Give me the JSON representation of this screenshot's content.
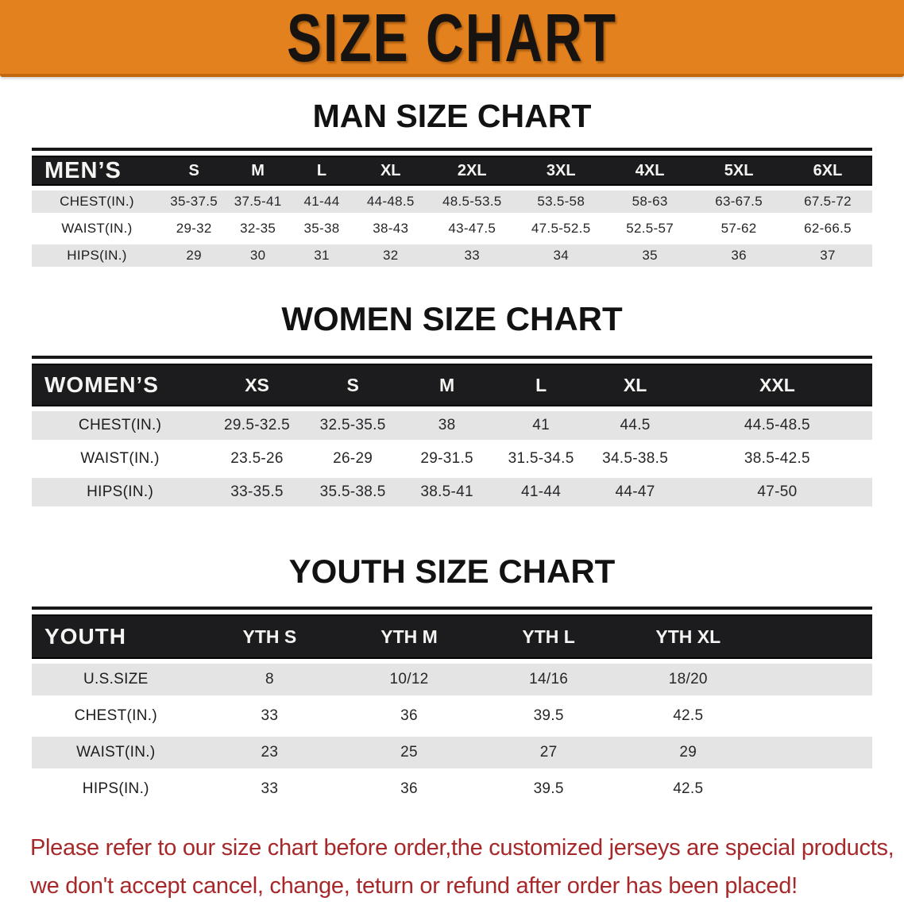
{
  "banner": {
    "title": "SIZE CHART",
    "bg_color": "#e2811e",
    "text_color": "#161311"
  },
  "chart_data": [
    {
      "type": "table",
      "title": "MAN SIZE CHART",
      "corner_label": "MEN’S",
      "columns": [
        "S",
        "M",
        "L",
        "XL",
        "2XL",
        "3XL",
        "4XL",
        "5XL",
        "6XL"
      ],
      "rows": [
        {
          "label": "CHEST(IN.)",
          "values": [
            "35-37.5",
            "37.5-41",
            "41-44",
            "44-48.5",
            "48.5-53.5",
            "53.5-58",
            "58-63",
            "63-67.5",
            "67.5-72"
          ]
        },
        {
          "label": "WAIST(IN.)",
          "values": [
            "29-32",
            "32-35",
            "35-38",
            "38-43",
            "43-47.5",
            "47.5-52.5",
            "52.5-57",
            "57-62",
            "62-66.5"
          ]
        },
        {
          "label": "HIPS(IN.)",
          "values": [
            "29",
            "30",
            "31",
            "32",
            "33",
            "34",
            "35",
            "36",
            "37"
          ]
        }
      ],
      "header_bg": "#1c1c1e",
      "stripe_color": "#e4e4e4"
    },
    {
      "type": "table",
      "title": "WOMEN SIZE CHART",
      "corner_label": "WOMEN’S",
      "columns": [
        "XS",
        "S",
        "M",
        "L",
        "XL",
        "XXL"
      ],
      "rows": [
        {
          "label": "CHEST(IN.)",
          "values": [
            "29.5-32.5",
            "32.5-35.5",
            "38",
            "41",
            "44.5",
            "44.5-48.5"
          ]
        },
        {
          "label": "WAIST(IN.)",
          "values": [
            "23.5-26",
            "26-29",
            "29-31.5",
            "31.5-34.5",
            "34.5-38.5",
            "38.5-42.5"
          ]
        },
        {
          "label": "HIPS(IN.)",
          "values": [
            "33-35.5",
            "35.5-38.5",
            "38.5-41",
            "41-44",
            "44-47",
            "47-50"
          ]
        }
      ],
      "header_bg": "#1c1c1e",
      "stripe_color": "#e4e4e4"
    },
    {
      "type": "table",
      "title": "YOUTH SIZE CHART",
      "corner_label": "YOUTH",
      "columns": [
        "YTH S",
        "YTH M",
        "YTH L",
        "YTH XL"
      ],
      "rows": [
        {
          "label": "U.S.SIZE",
          "values": [
            "8",
            "10/12",
            "14/16",
            "18/20"
          ]
        },
        {
          "label": "CHEST(IN.)",
          "values": [
            "33",
            "36",
            "39.5",
            "42.5"
          ]
        },
        {
          "label": "WAIST(IN.)",
          "values": [
            "23",
            "25",
            "27",
            "29"
          ]
        },
        {
          "label": "HIPS(IN.)",
          "values": [
            "33",
            "36",
            "39.5",
            "42.5"
          ]
        }
      ],
      "header_bg": "#1c1c1e",
      "stripe_color": "#e4e4e4"
    }
  ],
  "disclaimer": {
    "line1": "Please refer to our size chart before order,the customized jerseys are special products,",
    "line2": "we don't accept cancel, change, teturn or refund after order has been placed!",
    "color": "#a7282a"
  }
}
